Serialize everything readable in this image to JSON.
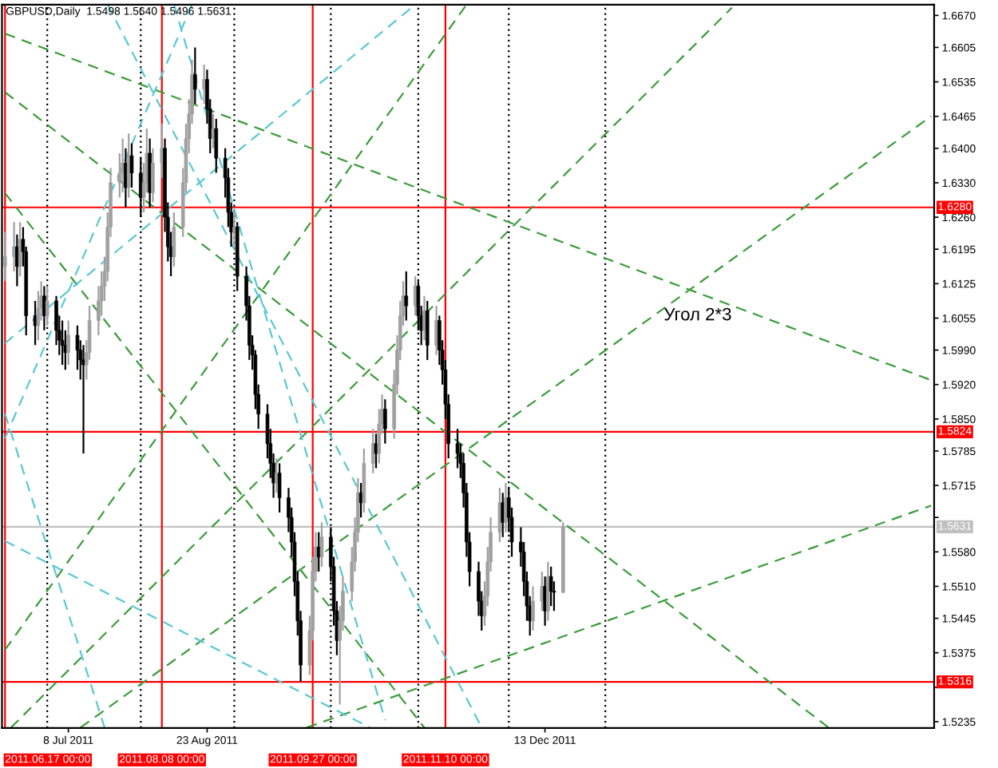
{
  "chart_data": {
    "type": "candlestick",
    "title": "GBPUSD,Daily  1.5498 1.5640 1.5496 1.5631",
    "x": [
      "2011-06-17",
      "2011-06-20",
      "2011-06-21",
      "2011-06-22",
      "2011-06-23",
      "2011-06-24",
      "2011-06-27",
      "2011-06-28",
      "2011-06-29",
      "2011-06-30",
      "2011-07-01",
      "2011-07-04",
      "2011-07-05",
      "2011-07-06",
      "2011-07-07",
      "2011-07-08",
      "2011-07-11",
      "2011-07-12",
      "2011-07-13",
      "2011-07-14",
      "2011-07-15",
      "2011-07-18",
      "2011-07-19",
      "2011-07-20",
      "2011-07-21",
      "2011-07-22",
      "2011-07-25",
      "2011-07-26",
      "2011-07-27",
      "2011-07-28",
      "2011-07-29",
      "2011-08-01",
      "2011-08-02",
      "2011-08-03",
      "2011-08-04",
      "2011-08-05",
      "2011-08-08",
      "2011-08-09",
      "2011-08-10",
      "2011-08-11",
      "2011-08-12",
      "2011-08-15",
      "2011-08-16",
      "2011-08-17",
      "2011-08-18",
      "2011-08-19",
      "2011-08-22",
      "2011-08-23",
      "2011-08-24",
      "2011-08-25",
      "2011-08-26",
      "2011-08-29",
      "2011-08-30",
      "2011-08-31",
      "2011-09-01",
      "2011-09-02",
      "2011-09-05",
      "2011-09-06",
      "2011-09-07",
      "2011-09-08",
      "2011-09-09",
      "2011-09-12",
      "2011-09-13",
      "2011-09-14",
      "2011-09-15",
      "2011-09-16",
      "2011-09-19",
      "2011-09-20",
      "2011-09-21",
      "2011-09-22",
      "2011-09-23",
      "2011-09-26",
      "2011-09-27",
      "2011-09-28",
      "2011-09-29",
      "2011-09-30",
      "2011-10-03",
      "2011-10-04",
      "2011-10-05",
      "2011-10-06",
      "2011-10-07",
      "2011-10-10",
      "2011-10-11",
      "2011-10-12",
      "2011-10-13",
      "2011-10-14",
      "2011-10-17",
      "2011-10-18",
      "2011-10-19",
      "2011-10-20",
      "2011-10-21",
      "2011-10-24",
      "2011-10-25",
      "2011-10-26",
      "2011-10-27",
      "2011-10-28",
      "2011-10-31",
      "2011-11-01",
      "2011-11-02",
      "2011-11-03",
      "2011-11-04",
      "2011-11-07",
      "2011-11-08",
      "2011-11-09",
      "2011-11-10",
      "2011-11-11",
      "2011-11-14",
      "2011-11-15",
      "2011-11-16",
      "2011-11-17",
      "2011-11-18",
      "2011-11-21",
      "2011-11-22",
      "2011-11-23",
      "2011-11-24",
      "2011-11-25",
      "2011-11-28",
      "2011-11-29",
      "2011-11-30",
      "2011-12-01",
      "2011-12-02",
      "2011-12-05",
      "2011-12-06",
      "2011-12-07",
      "2011-12-08",
      "2011-12-09",
      "2011-12-12",
      "2011-12-13",
      "2011-12-14",
      "2011-12-15",
      "2011-12-16",
      "2011-12-19"
    ],
    "ohlc": [
      [
        1.616,
        1.623,
        1.613,
        1.618
      ],
      [
        1.618,
        1.625,
        1.615,
        1.62
      ],
      [
        1.62,
        1.6225,
        1.612,
        1.616
      ],
      [
        1.616,
        1.625,
        1.614,
        1.6215
      ],
      [
        1.6215,
        1.624,
        1.616,
        1.619
      ],
      [
        1.619,
        1.62,
        1.602,
        1.606
      ],
      [
        1.606,
        1.609,
        1.6,
        1.604
      ],
      [
        1.604,
        1.611,
        1.601,
        1.6075
      ],
      [
        1.6075,
        1.613,
        1.605,
        1.61
      ],
      [
        1.61,
        1.612,
        1.603,
        1.606
      ],
      [
        1.606,
        1.612,
        1.604,
        1.609
      ],
      [
        1.609,
        1.61,
        1.6,
        1.603
      ],
      [
        1.603,
        1.606,
        1.598,
        1.601
      ],
      [
        1.601,
        1.605,
        1.596,
        1.6
      ],
      [
        1.6,
        1.603,
        1.595,
        1.5985
      ],
      [
        1.5985,
        1.605,
        1.596,
        1.602
      ],
      [
        1.602,
        1.604,
        1.595,
        1.599
      ],
      [
        1.599,
        1.601,
        1.593,
        1.597
      ],
      [
        1.597,
        1.6,
        1.578,
        1.596
      ],
      [
        1.596,
        1.601,
        1.593,
        1.5985
      ],
      [
        1.5985,
        1.608,
        1.597,
        1.605
      ],
      [
        1.605,
        1.612,
        1.602,
        1.609
      ],
      [
        1.609,
        1.615,
        1.606,
        1.612
      ],
      [
        1.612,
        1.618,
        1.609,
        1.615
      ],
      [
        1.615,
        1.627,
        1.613,
        1.624
      ],
      [
        1.624,
        1.636,
        1.622,
        1.633
      ],
      [
        1.633,
        1.639,
        1.63,
        1.635
      ],
      [
        1.635,
        1.642,
        1.631,
        1.637
      ],
      [
        1.637,
        1.64,
        1.628,
        1.632
      ],
      [
        1.632,
        1.643,
        1.63,
        1.6385
      ],
      [
        1.6385,
        1.641,
        1.632,
        1.635
      ],
      [
        1.635,
        1.638,
        1.626,
        1.63
      ],
      [
        1.63,
        1.637,
        1.627,
        1.633
      ],
      [
        1.633,
        1.644,
        1.631,
        1.639
      ],
      [
        1.639,
        1.642,
        1.628,
        1.631
      ],
      [
        1.631,
        1.64,
        1.629,
        1.637
      ],
      [
        1.637,
        1.645,
        1.634,
        1.64
      ],
      [
        1.64,
        1.642,
        1.623,
        1.626
      ],
      [
        1.626,
        1.629,
        1.617,
        1.62
      ],
      [
        1.62,
        1.623,
        1.614,
        1.618
      ],
      [
        1.618,
        1.627,
        1.616,
        1.624
      ],
      [
        1.624,
        1.636,
        1.622,
        1.633
      ],
      [
        1.633,
        1.645,
        1.631,
        1.642
      ],
      [
        1.642,
        1.65,
        1.639,
        1.647
      ],
      [
        1.647,
        1.658,
        1.645,
        1.655
      ],
      [
        1.655,
        1.6605,
        1.649,
        1.652
      ],
      [
        1.652,
        1.657,
        1.649,
        1.654
      ],
      [
        1.654,
        1.656,
        1.645,
        1.648
      ],
      [
        1.648,
        1.65,
        1.639,
        1.642
      ],
      [
        1.642,
        1.647,
        1.64,
        1.644
      ],
      [
        1.644,
        1.646,
        1.635,
        1.638
      ],
      [
        1.638,
        1.64,
        1.63,
        1.634
      ],
      [
        1.634,
        1.636,
        1.624,
        1.627
      ],
      [
        1.627,
        1.629,
        1.62,
        1.623
      ],
      [
        1.623,
        1.627,
        1.62,
        1.624
      ],
      [
        1.624,
        1.625,
        1.611,
        1.614
      ],
      [
        1.614,
        1.616,
        1.605,
        1.608
      ],
      [
        1.608,
        1.61,
        1.597,
        1.6
      ],
      [
        1.6,
        1.602,
        1.595,
        1.598
      ],
      [
        1.598,
        1.599,
        1.587,
        1.59
      ],
      [
        1.59,
        1.592,
        1.583,
        1.586
      ],
      [
        1.586,
        1.588,
        1.577,
        1.58
      ],
      [
        1.58,
        1.583,
        1.573,
        1.576
      ],
      [
        1.576,
        1.578,
        1.569,
        1.572
      ],
      [
        1.572,
        1.577,
        1.57,
        1.574
      ],
      [
        1.574,
        1.576,
        1.566,
        1.569
      ],
      [
        1.569,
        1.571,
        1.562,
        1.565
      ],
      [
        1.565,
        1.567,
        1.557,
        1.56
      ],
      [
        1.56,
        1.562,
        1.549,
        1.552
      ],
      [
        1.552,
        1.554,
        1.541,
        1.544
      ],
      [
        1.544,
        1.546,
        1.5316,
        1.535
      ],
      [
        1.535,
        1.545,
        1.533,
        1.542
      ],
      [
        1.542,
        1.557,
        1.54,
        1.554
      ],
      [
        1.554,
        1.562,
        1.552,
        1.559
      ],
      [
        1.559,
        1.562,
        1.554,
        1.557
      ],
      [
        1.557,
        1.564,
        1.555,
        1.561
      ],
      [
        1.561,
        1.563,
        1.552,
        1.555
      ],
      [
        1.555,
        1.557,
        1.543,
        1.546
      ],
      [
        1.546,
        1.548,
        1.537,
        1.54
      ],
      [
        1.54,
        1.547,
        1.527,
        1.544
      ],
      [
        1.544,
        1.553,
        1.542,
        1.55
      ],
      [
        1.55,
        1.559,
        1.548,
        1.556
      ],
      [
        1.556,
        1.565,
        1.554,
        1.562
      ],
      [
        1.562,
        1.573,
        1.56,
        1.57
      ],
      [
        1.57,
        1.572,
        1.565,
        1.568
      ],
      [
        1.568,
        1.579,
        1.566,
        1.576
      ],
      [
        1.576,
        1.583,
        1.574,
        1.58
      ],
      [
        1.58,
        1.582,
        1.575,
        1.578
      ],
      [
        1.578,
        1.587,
        1.576,
        1.584
      ],
      [
        1.584,
        1.59,
        1.582,
        1.587
      ],
      [
        1.587,
        1.589,
        1.58,
        1.583
      ],
      [
        1.583,
        1.595,
        1.581,
        1.592
      ],
      [
        1.592,
        1.602,
        1.59,
        1.599
      ],
      [
        1.599,
        1.609,
        1.597,
        1.606
      ],
      [
        1.606,
        1.613,
        1.604,
        1.61
      ],
      [
        1.61,
        1.615,
        1.605,
        1.608
      ],
      [
        1.608,
        1.614,
        1.606,
        1.612
      ],
      [
        1.612,
        1.613,
        1.603,
        1.606
      ],
      [
        1.606,
        1.608,
        1.6,
        1.603
      ],
      [
        1.603,
        1.61,
        1.601,
        1.607
      ],
      [
        1.607,
        1.609,
        1.597,
        1.6
      ],
      [
        1.6,
        1.608,
        1.598,
        1.605
      ],
      [
        1.605,
        1.606,
        1.596,
        1.599
      ],
      [
        1.599,
        1.601,
        1.592,
        1.595
      ],
      [
        1.595,
        1.597,
        1.585,
        1.588
      ],
      [
        1.588,
        1.59,
        1.577,
        1.58
      ],
      [
        1.58,
        1.583,
        1.575,
        1.578
      ],
      [
        1.578,
        1.58,
        1.573,
        1.576
      ],
      [
        1.576,
        1.578,
        1.567,
        1.57
      ],
      [
        1.57,
        1.572,
        1.557,
        1.56
      ],
      [
        1.56,
        1.562,
        1.551,
        1.554
      ],
      [
        1.554,
        1.556,
        1.545,
        1.548
      ],
      [
        1.548,
        1.55,
        1.542,
        1.545
      ],
      [
        1.545,
        1.552,
        1.543,
        1.549
      ],
      [
        1.549,
        1.559,
        1.547,
        1.556
      ],
      [
        1.556,
        1.565,
        1.554,
        1.562
      ],
      [
        1.562,
        1.571,
        1.56,
        1.568
      ],
      [
        1.568,
        1.57,
        1.561,
        1.564
      ],
      [
        1.564,
        1.572,
        1.562,
        1.569
      ],
      [
        1.569,
        1.571,
        1.562,
        1.565
      ],
      [
        1.565,
        1.567,
        1.557,
        1.56
      ],
      [
        1.56,
        1.563,
        1.555,
        1.558
      ],
      [
        1.558,
        1.56,
        1.549,
        1.552
      ],
      [
        1.552,
        1.554,
        1.544,
        1.547
      ],
      [
        1.547,
        1.549,
        1.541,
        1.544
      ],
      [
        1.544,
        1.551,
        1.542,
        1.548
      ],
      [
        1.548,
        1.554,
        1.546,
        1.551
      ],
      [
        1.551,
        1.553,
        1.543,
        1.546
      ],
      [
        1.546,
        1.556,
        1.544,
        1.553
      ],
      [
        1.553,
        1.555,
        1.547,
        1.55
      ],
      [
        1.55,
        1.552,
        1.546,
        1.5498
      ],
      [
        1.5498,
        1.564,
        1.5496,
        1.5631
      ]
    ],
    "colors": [
      "#a0a0a0",
      "#a0a0a0",
      "#000000",
      "#a0a0a0",
      "#000000",
      "#000000",
      "#000000",
      "#a0a0a0",
      "#a0a0a0",
      "#000000",
      "#a0a0a0",
      "#000000",
      "#000000",
      "#000000",
      "#000000",
      "#a0a0a0",
      "#000000",
      "#000000",
      "#000000",
      "#a0a0a0",
      "#a0a0a0",
      "#a0a0a0",
      "#a0a0a0",
      "#a0a0a0",
      "#a0a0a0",
      "#a0a0a0",
      "#a0a0a0",
      "#a0a0a0",
      "#000000",
      "#a0a0a0",
      "#000000",
      "#000000",
      "#a0a0a0",
      "#a0a0a0",
      "#000000",
      "#a0a0a0",
      "#a0a0a0",
      "#000000",
      "#000000",
      "#000000",
      "#a0a0a0",
      "#a0a0a0",
      "#a0a0a0",
      "#a0a0a0",
      "#a0a0a0",
      "#000000",
      "#a0a0a0",
      "#000000",
      "#000000",
      "#a0a0a0",
      "#000000",
      "#000000",
      "#000000",
      "#000000",
      "#a0a0a0",
      "#000000",
      "#000000",
      "#000000",
      "#000000",
      "#000000",
      "#000000",
      "#000000",
      "#000000",
      "#000000",
      "#a0a0a0",
      "#000000",
      "#000000",
      "#000000",
      "#000000",
      "#000000",
      "#000000",
      "#a0a0a0",
      "#a0a0a0",
      "#a0a0a0",
      "#000000",
      "#a0a0a0",
      "#000000",
      "#000000",
      "#000000",
      "#a0a0a0",
      "#a0a0a0",
      "#a0a0a0",
      "#a0a0a0",
      "#a0a0a0",
      "#000000",
      "#a0a0a0",
      "#a0a0a0",
      "#000000",
      "#a0a0a0",
      "#a0a0a0",
      "#000000",
      "#a0a0a0",
      "#a0a0a0",
      "#a0a0a0",
      "#a0a0a0",
      "#000000",
      "#a0a0a0",
      "#000000",
      "#000000",
      "#a0a0a0",
      "#000000",
      "#a0a0a0",
      "#000000",
      "#000000",
      "#000000",
      "#000000",
      "#000000",
      "#000000",
      "#000000",
      "#000000",
      "#000000",
      "#000000",
      "#000000",
      "#a0a0a0",
      "#a0a0a0",
      "#a0a0a0",
      "#a0a0a0",
      "#000000",
      "#a0a0a0",
      "#000000",
      "#000000",
      "#000000",
      "#000000",
      "#000000",
      "#000000",
      "#a0a0a0",
      "#a0a0a0",
      "#000000",
      "#a0a0a0",
      "#000000",
      "#000000",
      "#a0a0a0"
    ],
    "series": [
      {
        "type": "line",
        "color": "#3c9c3c",
        "line_style": "dashed",
        "x": [
          "2011-06-17",
          "2012-04-19"
        ],
        "values": [
          1.6633,
          1.5929
        ]
      },
      {
        "type": "line",
        "color": "#3c9c3c",
        "line_style": "dashed",
        "x": [
          "2011-06-17",
          "2012-03-16"
        ],
        "values": [
          1.6514,
          1.5223
        ]
      },
      {
        "type": "line",
        "color": "#3c9c3c",
        "line_style": "dashed",
        "x": [
          "2011-06-17",
          "2011-11-03"
        ],
        "values": [
          1.6309,
          1.5223
        ]
      },
      {
        "type": "line",
        "color": "#3c9c3c",
        "line_style": "dashed",
        "x": [
          "2011-06-19",
          "2012-02-13"
        ],
        "values": [
          1.5223,
          1.6686
        ]
      },
      {
        "type": "line",
        "color": "#3c9c3c",
        "line_style": "dashed",
        "x": [
          "2011-07-12",
          "2012-04-19"
        ],
        "values": [
          1.5223,
          1.6465
        ]
      },
      {
        "type": "line",
        "color": "#3c9c3c",
        "line_style": "dashed",
        "x": [
          "2011-09-25",
          "2012-04-19"
        ],
        "values": [
          1.5223,
          1.5674
        ]
      },
      {
        "type": "line",
        "color": "#3c9c3c",
        "line_style": "dashed",
        "x": [
          "2011-06-17",
          "2011-11-17"
        ],
        "values": [
          1.5381,
          1.6692
        ]
      },
      {
        "type": "line",
        "color": "#5ac8d2",
        "line_style": "dashed",
        "x": [
          "2011-06-17",
          "2011-08-18"
        ],
        "values": [
          1.5811,
          1.6692
        ]
      },
      {
        "type": "line",
        "color": "#5ac8d2",
        "line_style": "dashed",
        "x": [
          "2011-06-17",
          "2011-07-20"
        ],
        "values": [
          1.5861,
          1.5223
        ]
      },
      {
        "type": "line",
        "color": "#5ac8d2",
        "line_style": "dashed",
        "x": [
          "2011-06-17",
          "2011-10-16"
        ],
        "values": [
          1.5602,
          1.5223
        ]
      },
      {
        "type": "line",
        "color": "#5ac8d2",
        "line_style": "dashed",
        "x": [
          "2011-08-12",
          "2011-10-21"
        ],
        "values": [
          1.6692,
          1.5238
        ]
      },
      {
        "type": "line",
        "color": "#5ac8d2",
        "line_style": "dashed",
        "x": [
          "2011-06-17",
          "2011-10-31"
        ],
        "values": [
          1.6004,
          1.6692
        ]
      },
      {
        "type": "line",
        "color": "#5ac8d2",
        "line_style": "dashed",
        "x": [
          "2011-07-21",
          "2011-11-22"
        ],
        "values": [
          1.6692,
          1.5223
        ]
      }
    ],
    "xlim": [
      "2011-06-16",
      "2012-04-20"
    ],
    "xticks": [
      {
        "value": "2011-07-08",
        "label": "8 Jul 2011"
      },
      {
        "value": "2011-08-23",
        "label": "23 Aug 2011"
      },
      {
        "value": "2011-12-13",
        "label": "13 Dec 2011"
      }
    ],
    "ylim": [
      1.5222,
      1.6692
    ],
    "yticks": [
      {
        "value": 1.667,
        "label": "1.6670"
      },
      {
        "value": 1.6605,
        "label": "1.6605"
      },
      {
        "value": 1.6535,
        "label": "1.6535"
      },
      {
        "value": 1.6465,
        "label": "1.6465"
      },
      {
        "value": 1.64,
        "label": "1.6400"
      },
      {
        "value": 1.633,
        "label": "1.6330"
      },
      {
        "value": 1.626,
        "label": "1.6260"
      },
      {
        "value": 1.6195,
        "label": "1.6195"
      },
      {
        "value": 1.6125,
        "label": "1.6125"
      },
      {
        "value": 1.6055,
        "label": "1.6055"
      },
      {
        "value": 1.599,
        "label": "1.5990"
      },
      {
        "value": 1.592,
        "label": "1.5920"
      },
      {
        "value": 1.585,
        "label": "1.5850"
      },
      {
        "value": 1.5785,
        "label": "1.5785"
      },
      {
        "value": 1.5715,
        "label": "1.5715"
      },
      {
        "value": 1.565,
        "label": null
      },
      {
        "value": 1.558,
        "label": "1.5580"
      },
      {
        "value": 1.551,
        "label": "1.5510"
      },
      {
        "value": 1.5445,
        "label": "1.5445"
      },
      {
        "value": 1.5375,
        "label": "1.5375"
      },
      {
        "value": 1.5305,
        "label": null
      },
      {
        "value": 1.5235,
        "label": "1.5235"
      }
    ],
    "ref_lines": [
      {
        "axis": "y",
        "value": 1.628,
        "label": "1.6280",
        "color": "#ff0000",
        "line_style": "solid"
      },
      {
        "axis": "y",
        "value": 1.5824,
        "label": "1.5824",
        "color": "#ff0000",
        "line_style": "solid"
      },
      {
        "axis": "y",
        "value": 1.5316,
        "label": "1.5316",
        "color": "#ff0000",
        "line_style": "solid"
      },
      {
        "axis": "y",
        "value": 1.5631,
        "label": "1.5631",
        "color": "#c0c0c0",
        "line_style": "solid"
      },
      {
        "axis": "x",
        "value": "2011-06-17",
        "label": "2011.06.17 00:00",
        "color": "#ff0000",
        "line_style": "solid"
      },
      {
        "axis": "x",
        "value": "2011-08-08",
        "label": "2011.08.08 00:00",
        "color": "#ff0000",
        "line_style": "solid"
      },
      {
        "axis": "x",
        "value": "2011-09-27",
        "label": "2011.09.27 00:00",
        "color": "#ff0000",
        "line_style": "solid"
      },
      {
        "axis": "x",
        "value": "2011-11-10",
        "label": "2011.11.10 00:00",
        "color": "#ff0000",
        "line_style": "solid"
      },
      {
        "axis": "x",
        "value": "2011-07-01",
        "color": "#000000",
        "line_style": "dotted"
      },
      {
        "axis": "x",
        "value": "2011-08-01",
        "color": "#000000",
        "line_style": "dotted"
      },
      {
        "axis": "x",
        "value": "2011-09-01",
        "color": "#000000",
        "line_style": "dotted"
      },
      {
        "axis": "x",
        "value": "2011-10-03",
        "color": "#000000",
        "line_style": "dotted"
      },
      {
        "axis": "x",
        "value": "2011-11-01",
        "color": "#000000",
        "line_style": "dotted"
      },
      {
        "axis": "x",
        "value": "2011-12-01",
        "color": "#000000",
        "line_style": "dotted"
      },
      {
        "axis": "x",
        "value": "2012-01-02",
        "color": "#000000",
        "line_style": "dotted"
      }
    ],
    "annotations": [
      "Угол 2*3"
    ]
  }
}
